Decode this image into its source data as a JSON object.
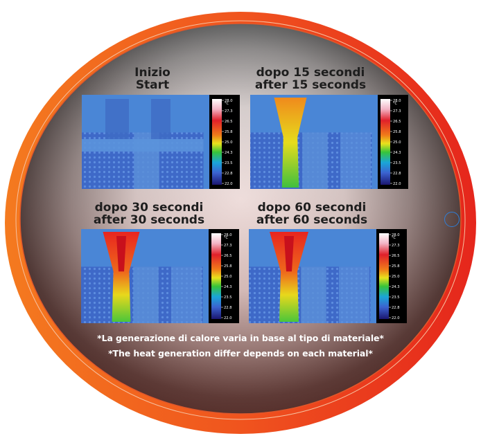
{
  "panels": [
    {
      "id": "start",
      "line1": "Inizio",
      "line2": "Start",
      "heat_level": 0.0
    },
    {
      "id": "15s",
      "line1": "dopo 15 secondi",
      "line2": "after 15 seconds",
      "heat_level": 0.55
    },
    {
      "id": "30s",
      "line1": "dopo 30 secondi",
      "line2": "after 30 seconds",
      "heat_level": 0.85
    },
    {
      "id": "60s",
      "line1": "dopo 60 secondi",
      "line2": "after 60 seconds",
      "heat_level": 1.0
    }
  ],
  "scale": {
    "unit": "°C",
    "ticks": [
      "28.0",
      "27.3",
      "26.5",
      "25.8",
      "25.0",
      "24.3",
      "23.5",
      "22.8",
      "22.0"
    ]
  },
  "notes": {
    "italian": "*La generazione di calore varia in base al tipo di materiale*",
    "english": "*The heat generation differ depends on each material*"
  },
  "colors": {
    "frame_outer": "#e73b1e",
    "frame_inner": "#f2761c",
    "thermal_cold": "#3f6fc9",
    "thermal_hot": "#e31b1b",
    "ring": "#2f7fd8"
  }
}
